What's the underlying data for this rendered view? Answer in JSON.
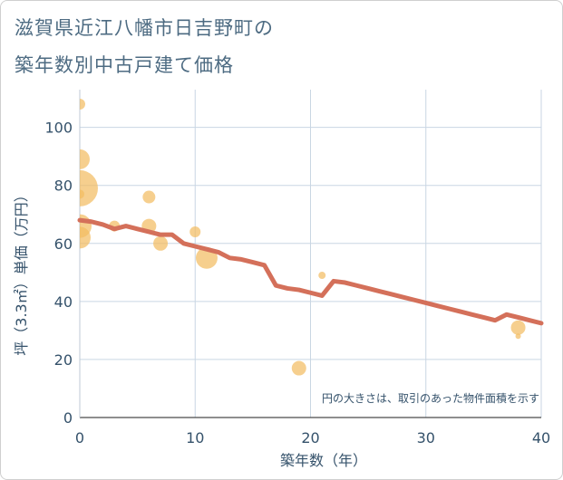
{
  "title_lines": [
    "滋賀県近江八幡市日吉野町の",
    "築年数別中古戸建て価格"
  ],
  "chart_data": {
    "type": "scatter",
    "title": "滋賀県近江八幡市日吉野町の築年数別中古戸建て価格",
    "xlabel": "築年数（年）",
    "ylabel": "坪（3.3㎡）単価（万円）",
    "xlim": [
      0,
      40
    ],
    "ylim": [
      0,
      113
    ],
    "xticks": [
      0,
      10,
      20,
      30,
      40
    ],
    "yticks": [
      0,
      20,
      40,
      60,
      80,
      100
    ],
    "grid": true,
    "annotation": "円の大きさは、取引のあった物件面積を示す",
    "colors": {
      "bubble": "#f2bd62",
      "line": "#d4705a",
      "grid": "#c9d6e3",
      "text": "#35526b"
    },
    "bubbles": [
      {
        "x": 0,
        "y": 108,
        "size": 6
      },
      {
        "x": 0,
        "y": 89,
        "size": 11
      },
      {
        "x": 0,
        "y": 79,
        "size": 20
      },
      {
        "x": 0,
        "y": 77,
        "size": 5
      },
      {
        "x": 0,
        "y": 66,
        "size": 13
      },
      {
        "x": 0,
        "y": 62,
        "size": 12
      },
      {
        "x": 3,
        "y": 66,
        "size": 6
      },
      {
        "x": 6,
        "y": 76,
        "size": 7
      },
      {
        "x": 6,
        "y": 66,
        "size": 8
      },
      {
        "x": 7,
        "y": 60,
        "size": 8
      },
      {
        "x": 10,
        "y": 64,
        "size": 6
      },
      {
        "x": 11,
        "y": 55,
        "size": 12
      },
      {
        "x": 19,
        "y": 17,
        "size": 8
      },
      {
        "x": 21,
        "y": 49,
        "size": 4
      },
      {
        "x": 38,
        "y": 31,
        "size": 8
      },
      {
        "x": 38,
        "y": 28,
        "size": 3
      }
    ],
    "trend_line": {
      "x": [
        0,
        1,
        2,
        3,
        4,
        5,
        6,
        7,
        8,
        9,
        10,
        11,
        12,
        13,
        14,
        15,
        16,
        17,
        18,
        19,
        20,
        21,
        22,
        23,
        24,
        25,
        26,
        27,
        28,
        29,
        30,
        31,
        32,
        33,
        34,
        35,
        36,
        37,
        38,
        39,
        40
      ],
      "y": [
        68,
        67.5,
        66.5,
        65,
        66,
        65,
        64,
        63,
        63,
        60,
        59,
        58,
        57,
        55,
        54.5,
        53.5,
        52.5,
        45.5,
        44.5,
        44,
        43,
        42,
        47,
        46.5,
        45.5,
        44.5,
        43.5,
        42.5,
        41.5,
        40.5,
        39.5,
        38.5,
        37.5,
        36.5,
        35.5,
        34.5,
        33.5,
        35.5,
        34.5,
        33.5,
        32.5
      ]
    }
  }
}
